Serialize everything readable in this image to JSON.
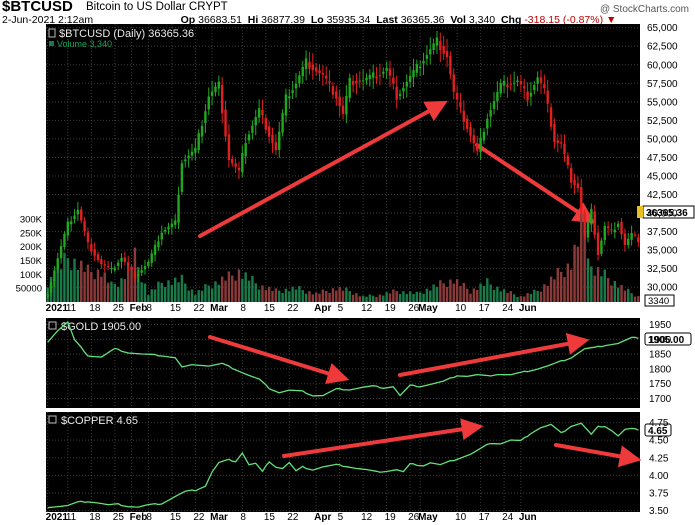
{
  "header": {
    "symbol": "$BTCUSD",
    "name": "Bitcoin to US Dollar",
    "exchange": "CRYPT",
    "brand": "@ StockCharts.com",
    "date": "2-Jun-2021 2:12am",
    "open_label": "Op",
    "open": "36683.51",
    "high_label": "Hi",
    "high": "36877.39",
    "low_label": "Lo",
    "low": "35935.34",
    "last_label": "Last",
    "last": "36365.36",
    "vol_label": "Vol",
    "vol": "3,340",
    "chg_label": "Chg",
    "chg": "-318.15 (-0.87%)",
    "chg_arrow": "▼"
  },
  "panels": {
    "btc": {
      "legend": "$BTCUSD (Daily) 36365.36",
      "volume_legend": "Volume 3,340",
      "last_tag": "36365.36",
      "volume_tag": "3340"
    },
    "gold": {
      "legend": "$GOLD 1905.00",
      "last_tag": "1905.00"
    },
    "copper": {
      "legend": "$COPPER 4.65",
      "last_tag": "4.65"
    }
  },
  "colors": {
    "up": "#21a821",
    "down": "#e0201e",
    "volume": "#1a7a4a",
    "volume_down": "#8b3a3a",
    "line": "#63e07a",
    "arrow": "#ee3a3a",
    "grid": "#3a3a3a",
    "bg": "#000000"
  },
  "chart_data": [
    {
      "type": "candlestick",
      "title": "$BTCUSD (Daily) 36365.36",
      "x_ticks": [
        "2021",
        "11",
        "18",
        "25",
        "Feb",
        "8",
        "15",
        "22",
        "Mar",
        "8",
        "15",
        "22",
        "Apr",
        "5",
        "12",
        "19",
        "26",
        "May",
        "10",
        "17",
        "24",
        "Jun"
      ],
      "ylim": [
        28000,
        65500
      ],
      "y_ticks": [
        30000,
        32500,
        35000,
        37500,
        40000,
        42500,
        45000,
        47500,
        50000,
        52500,
        55000,
        57500,
        60000,
        62500,
        65000
      ],
      "volume_y_ticks": [
        "50000",
        "100K",
        "150K",
        "200K",
        "250K",
        "300K"
      ],
      "volume_ylim": [
        0,
        340000
      ],
      "close_anchors": [
        [
          0,
          29300
        ],
        [
          6,
          38500
        ],
        [
          9,
          40500
        ],
        [
          12,
          35800
        ],
        [
          16,
          33100
        ],
        [
          19,
          32300
        ],
        [
          22,
          34000
        ],
        [
          26,
          31500
        ],
        [
          30,
          33300
        ],
        [
          34,
          37500
        ],
        [
          38,
          38700
        ],
        [
          40,
          47000
        ],
        [
          44,
          48500
        ],
        [
          48,
          55800
        ],
        [
          51,
          57300
        ],
        [
          54,
          47300
        ],
        [
          57,
          45500
        ],
        [
          59,
          49800
        ],
        [
          63,
          53900
        ],
        [
          66,
          50600
        ],
        [
          68,
          48500
        ],
        [
          71,
          55500
        ],
        [
          74,
          57500
        ],
        [
          77,
          60400
        ],
        [
          82,
          58500
        ],
        [
          86,
          55700
        ],
        [
          88,
          53300
        ],
        [
          90,
          57800
        ],
        [
          94,
          57900
        ],
        [
          99,
          58800
        ],
        [
          101,
          59500
        ],
        [
          104,
          55800
        ],
        [
          108,
          58300
        ],
        [
          112,
          60800
        ],
        [
          116,
          63200
        ],
        [
          119,
          61200
        ],
        [
          121,
          56200
        ],
        [
          123,
          53800
        ],
        [
          126,
          50500
        ],
        [
          128,
          48200
        ],
        [
          131,
          53000
        ],
        [
          135,
          57200
        ],
        [
          140,
          57800
        ],
        [
          143,
          55700
        ],
        [
          146,
          58300
        ],
        [
          148,
          56500
        ],
        [
          151,
          49800
        ],
        [
          153,
          49300
        ],
        [
          156,
          44500
        ],
        [
          158,
          43500
        ],
        [
          160,
          36700
        ],
        [
          162,
          40200
        ],
        [
          164,
          34500
        ],
        [
          166,
          38200
        ],
        [
          168,
          37400
        ],
        [
          170,
          38800
        ],
        [
          172,
          35700
        ],
        [
          174,
          37100
        ],
        [
          176,
          36365
        ]
      ],
      "volume_anchors": [
        [
          0,
          70000
        ],
        [
          6,
          160000
        ],
        [
          9,
          140000
        ],
        [
          12,
          110000
        ],
        [
          16,
          110000
        ],
        [
          19,
          60000
        ],
        [
          22,
          80000
        ],
        [
          26,
          160000
        ],
        [
          30,
          30000
        ],
        [
          34,
          70000
        ],
        [
          40,
          80000
        ],
        [
          44,
          30000
        ],
        [
          48,
          60000
        ],
        [
          54,
          90000
        ],
        [
          57,
          110000
        ],
        [
          63,
          60000
        ],
        [
          68,
          40000
        ],
        [
          74,
          50000
        ],
        [
          80,
          30000
        ],
        [
          86,
          50000
        ],
        [
          90,
          40000
        ],
        [
          94,
          20000
        ],
        [
          99,
          25000
        ],
        [
          104,
          40000
        ],
        [
          110,
          30000
        ],
        [
          116,
          60000
        ],
        [
          121,
          80000
        ],
        [
          126,
          40000
        ],
        [
          131,
          70000
        ],
        [
          136,
          40000
        ],
        [
          141,
          20000
        ],
        [
          146,
          40000
        ],
        [
          151,
          90000
        ],
        [
          156,
          140000
        ],
        [
          160,
          300000
        ],
        [
          162,
          120000
        ],
        [
          164,
          110000
        ],
        [
          168,
          80000
        ],
        [
          172,
          45000
        ],
        [
          176,
          20000
        ]
      ],
      "annotations": [
        {
          "type": "arrow",
          "direction": "up"
        },
        {
          "type": "arrow",
          "direction": "down"
        }
      ]
    },
    {
      "type": "line",
      "title": "$GOLD 1905.00",
      "ylim": [
        1668,
        1972
      ],
      "y_ticks": [
        1700,
        1750,
        1800,
        1850,
        1900,
        1950
      ],
      "anchors": [
        [
          0,
          1892
        ],
        [
          3,
          1930
        ],
        [
          6,
          1958
        ],
        [
          8,
          1898
        ],
        [
          12,
          1845
        ],
        [
          16,
          1840
        ],
        [
          20,
          1868
        ],
        [
          24,
          1855
        ],
        [
          28,
          1850
        ],
        [
          31,
          1848
        ],
        [
          34,
          1845
        ],
        [
          38,
          1838
        ],
        [
          40,
          1806
        ],
        [
          44,
          1815
        ],
        [
          48,
          1810
        ],
        [
          52,
          1818
        ],
        [
          56,
          1798
        ],
        [
          60,
          1778
        ],
        [
          63,
          1765
        ],
        [
          66,
          1735
        ],
        [
          69,
          1720
        ],
        [
          72,
          1728
        ],
        [
          76,
          1724
        ],
        [
          79,
          1710
        ],
        [
          82,
          1710
        ],
        [
          86,
          1732
        ],
        [
          90,
          1730
        ],
        [
          94,
          1738
        ],
        [
          97,
          1742
        ],
        [
          100,
          1736
        ],
        [
          103,
          1740
        ],
        [
          105,
          1710
        ],
        [
          108,
          1744
        ],
        [
          111,
          1741
        ],
        [
          114,
          1748
        ],
        [
          118,
          1758
        ],
        [
          122,
          1778
        ],
        [
          125,
          1775
        ],
        [
          128,
          1780
        ],
        [
          131,
          1776
        ],
        [
          134,
          1782
        ],
        [
          138,
          1780
        ],
        [
          142,
          1790
        ],
        [
          146,
          1800
        ],
        [
          149,
          1810
        ],
        [
          152,
          1822
        ],
        [
          156,
          1838
        ],
        [
          160,
          1868
        ],
        [
          163,
          1872
        ],
        [
          166,
          1880
        ],
        [
          170,
          1886
        ],
        [
          174,
          1905
        ],
        [
          176,
          1905
        ]
      ],
      "annotations": [
        {
          "type": "arrow",
          "direction": "down"
        },
        {
          "type": "arrow",
          "direction": "up"
        }
      ]
    },
    {
      "type": "line",
      "title": "$COPPER 4.65",
      "ylim": [
        3.48,
        4.9
      ],
      "y_ticks": [
        3.5,
        3.75,
        4.0,
        4.25,
        4.5,
        4.75
      ],
      "anchors": [
        [
          0,
          3.55
        ],
        [
          3,
          3.56
        ],
        [
          6,
          3.57
        ],
        [
          9,
          3.62
        ],
        [
          12,
          3.63
        ],
        [
          15,
          3.61
        ],
        [
          18,
          3.58
        ],
        [
          21,
          3.59
        ],
        [
          24,
          3.56
        ],
        [
          27,
          3.55
        ],
        [
          30,
          3.58
        ],
        [
          34,
          3.6
        ],
        [
          38,
          3.7
        ],
        [
          41,
          3.77
        ],
        [
          44,
          3.79
        ],
        [
          47,
          3.85
        ],
        [
          49,
          4.05
        ],
        [
          51,
          4.18
        ],
        [
          54,
          4.22
        ],
        [
          56,
          4.2
        ],
        [
          58,
          4.32
        ],
        [
          60,
          4.15
        ],
        [
          62,
          4.17
        ],
        [
          64,
          4.05
        ],
        [
          66,
          4.2
        ],
        [
          68,
          4.12
        ],
        [
          70,
          4.1
        ],
        [
          72,
          4.18
        ],
        [
          74,
          4.06
        ],
        [
          76,
          4.12
        ],
        [
          79,
          4.08
        ],
        [
          82,
          4.12
        ],
        [
          86,
          4.15
        ],
        [
          89,
          4.13
        ],
        [
          92,
          4.1
        ],
        [
          95,
          4.08
        ],
        [
          98,
          4.05
        ],
        [
          101,
          4.06
        ],
        [
          104,
          4.08
        ],
        [
          106,
          4.05
        ],
        [
          108,
          4.16
        ],
        [
          110,
          4.15
        ],
        [
          112,
          4.14
        ],
        [
          114,
          4.18
        ],
        [
          117,
          4.15
        ],
        [
          120,
          4.2
        ],
        [
          123,
          4.25
        ],
        [
          126,
          4.3
        ],
        [
          129,
          4.38
        ],
        [
          132,
          4.46
        ],
        [
          135,
          4.45
        ],
        [
          138,
          4.5
        ],
        [
          141,
          4.49
        ],
        [
          144,
          4.6
        ],
        [
          147,
          4.68
        ],
        [
          150,
          4.72
        ],
        [
          153,
          4.6
        ],
        [
          156,
          4.7
        ],
        [
          159,
          4.74
        ],
        [
          162,
          4.58
        ],
        [
          164,
          4.69
        ],
        [
          166,
          4.7
        ],
        [
          168,
          4.64
        ],
        [
          170,
          4.56
        ],
        [
          172,
          4.65
        ],
        [
          174,
          4.66
        ],
        [
          176,
          4.65
        ]
      ],
      "annotations": [
        {
          "type": "arrow",
          "direction": "up"
        },
        {
          "type": "arrow",
          "direction": "down"
        }
      ]
    }
  ]
}
